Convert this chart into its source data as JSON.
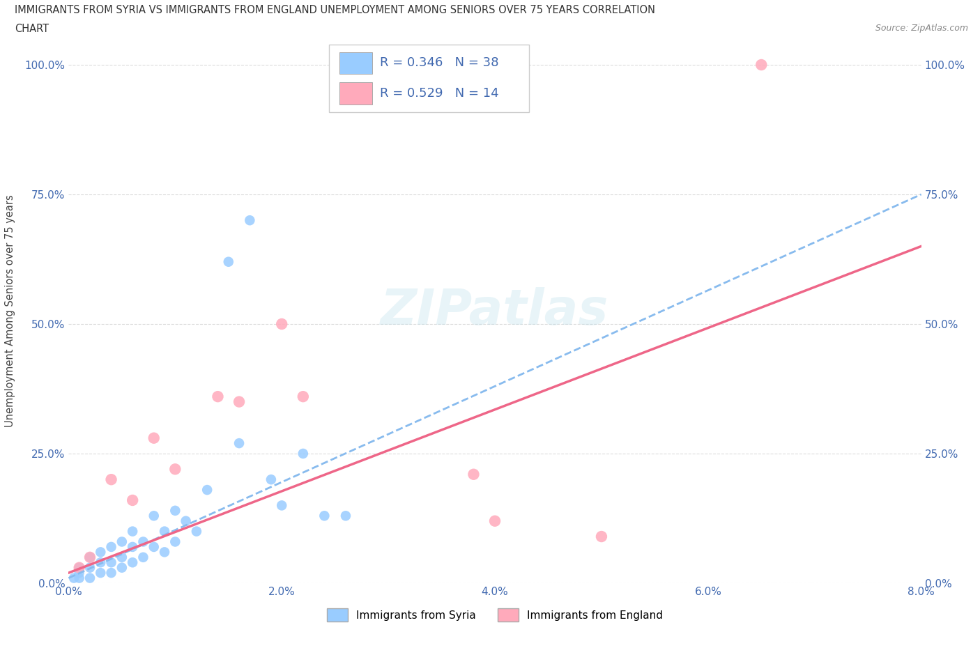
{
  "title_line1": "IMMIGRANTS FROM SYRIA VS IMMIGRANTS FROM ENGLAND UNEMPLOYMENT AMONG SENIORS OVER 75 YEARS CORRELATION",
  "title_line2": "CHART",
  "source": "Source: ZipAtlas.com",
  "ylabel": "Unemployment Among Seniors over 75 years",
  "xlim": [
    0.0,
    0.08
  ],
  "ylim": [
    0.0,
    1.05
  ],
  "xticks": [
    0.0,
    0.02,
    0.04,
    0.06,
    0.08
  ],
  "xticklabels": [
    "0.0%",
    "2.0%",
    "4.0%",
    "6.0%",
    "8.0%"
  ],
  "yticks": [
    0.0,
    0.25,
    0.5,
    0.75,
    1.0
  ],
  "yticklabels": [
    "0.0%",
    "25.0%",
    "50.0%",
    "75.0%",
    "100.0%"
  ],
  "syria_color": "#99ccff",
  "england_color": "#ffaabb",
  "syria_R": 0.346,
  "syria_N": 38,
  "england_R": 0.529,
  "england_N": 14,
  "watermark": "ZIPatlas",
  "legend_label_syria": "Immigrants from Syria",
  "legend_label_england": "Immigrants from England",
  "syria_x": [
    0.0005,
    0.001,
    0.001,
    0.001,
    0.002,
    0.002,
    0.002,
    0.003,
    0.003,
    0.003,
    0.004,
    0.004,
    0.004,
    0.005,
    0.005,
    0.005,
    0.006,
    0.006,
    0.006,
    0.007,
    0.007,
    0.008,
    0.008,
    0.009,
    0.009,
    0.01,
    0.01,
    0.011,
    0.012,
    0.013,
    0.015,
    0.016,
    0.017,
    0.019,
    0.02,
    0.022,
    0.024,
    0.026
  ],
  "syria_y": [
    0.01,
    0.01,
    0.02,
    0.03,
    0.01,
    0.03,
    0.05,
    0.02,
    0.04,
    0.06,
    0.02,
    0.04,
    0.07,
    0.03,
    0.05,
    0.08,
    0.04,
    0.07,
    0.1,
    0.05,
    0.08,
    0.07,
    0.13,
    0.06,
    0.1,
    0.08,
    0.14,
    0.12,
    0.1,
    0.18,
    0.62,
    0.27,
    0.7,
    0.2,
    0.15,
    0.25,
    0.13,
    0.13
  ],
  "england_x": [
    0.001,
    0.002,
    0.004,
    0.006,
    0.008,
    0.01,
    0.014,
    0.016,
    0.02,
    0.022,
    0.038,
    0.05,
    0.065,
    0.04
  ],
  "england_y": [
    0.03,
    0.05,
    0.2,
    0.16,
    0.28,
    0.22,
    0.36,
    0.35,
    0.5,
    0.36,
    0.21,
    0.09,
    1.0,
    0.12
  ],
  "line_syria_x0": 0.0,
  "line_syria_y0": 0.01,
  "line_syria_x1": 0.08,
  "line_syria_y1": 0.75,
  "line_england_x0": 0.0,
  "line_england_y0": 0.02,
  "line_england_x1": 0.08,
  "line_england_y1": 0.65,
  "background_color": "#ffffff",
  "grid_color": "#cccccc",
  "tick_color": "#4169b0",
  "title_color": "#333333",
  "stat_color": "#4169b0",
  "syria_line_color": "#88bbee",
  "england_line_color": "#ee6688"
}
